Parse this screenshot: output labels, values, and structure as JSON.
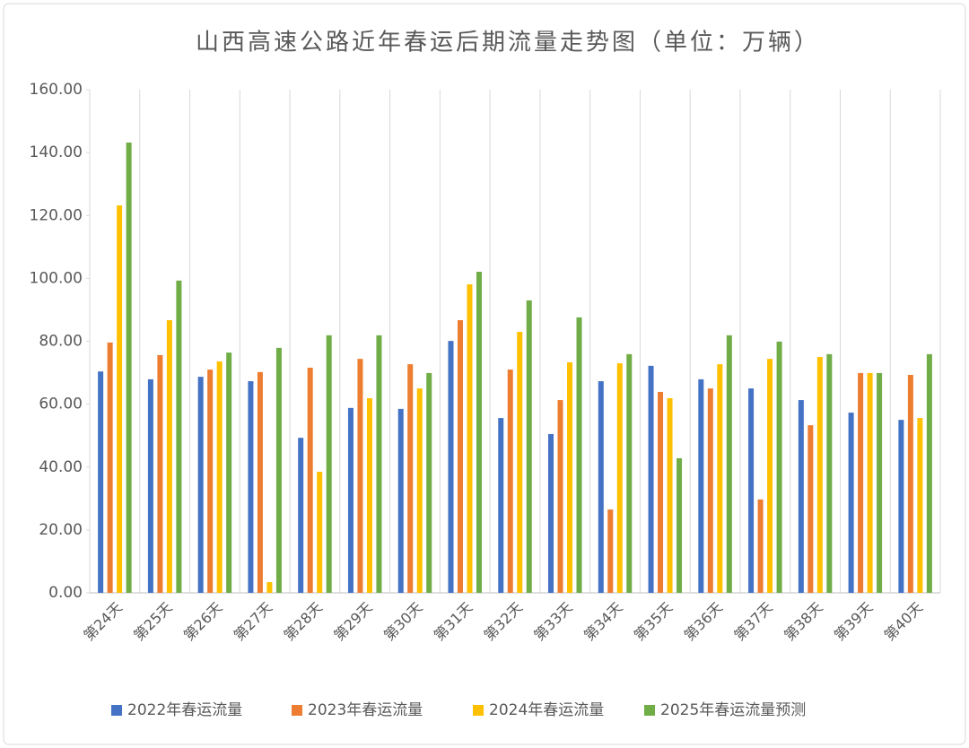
{
  "chart_data": {
    "type": "bar",
    "title": "山西高速公路近年春运后期流量走势图（单位：万辆）",
    "categories": [
      "第24天",
      "第25天",
      "第26天",
      "第27天",
      "第28天",
      "第29天",
      "第30天",
      "第31天",
      "第32天",
      "第33天",
      "第34天",
      "第35天",
      "第36天",
      "第37天",
      "第38天",
      "第39天",
      "第40天"
    ],
    "series": [
      {
        "name": "2022年春运流量",
        "color": "#4472c4",
        "values": [
          70.4,
          67.9,
          68.7,
          67.3,
          49.3,
          58.8,
          58.5,
          80.1,
          55.6,
          50.5,
          67.3,
          72.2,
          67.9,
          65.0,
          61.3,
          57.3,
          55.0
        ]
      },
      {
        "name": "2023年春运流量",
        "color": "#ed7d31",
        "values": [
          79.6,
          75.6,
          71.0,
          70.2,
          71.6,
          74.4,
          72.7,
          86.7,
          71.0,
          61.3,
          26.5,
          63.9,
          65.0,
          29.7,
          53.3,
          69.9,
          69.3
        ]
      },
      {
        "name": "2024年春运流量",
        "color": "#ffc000",
        "values": [
          123.2,
          86.7,
          73.6,
          3.4,
          38.5,
          61.9,
          65.0,
          98.1,
          83.0,
          73.3,
          73.0,
          61.9,
          72.7,
          74.4,
          75.0,
          69.9,
          55.6
        ]
      },
      {
        "name": "2025年春运流量预测",
        "color": "#70ad47",
        "values": [
          143.2,
          99.3,
          76.4,
          77.9,
          81.9,
          81.9,
          69.9,
          102.1,
          93.0,
          87.6,
          75.9,
          42.8,
          81.9,
          79.9,
          75.9,
          69.9,
          75.9
        ]
      }
    ],
    "ylim": [
      0,
      160
    ],
    "yticks": [
      {
        "value": 0,
        "label": "0.00"
      },
      {
        "value": 20,
        "label": "20.00"
      },
      {
        "value": 40,
        "label": "40.00"
      },
      {
        "value": 60,
        "label": "60.00"
      },
      {
        "value": 80,
        "label": "80.00"
      },
      {
        "value": 100,
        "label": "100.00"
      },
      {
        "value": 120,
        "label": "120.00"
      },
      {
        "value": 140,
        "label": "140.00"
      },
      {
        "value": 160,
        "label": "160.00"
      }
    ],
    "legend": "bottom"
  }
}
